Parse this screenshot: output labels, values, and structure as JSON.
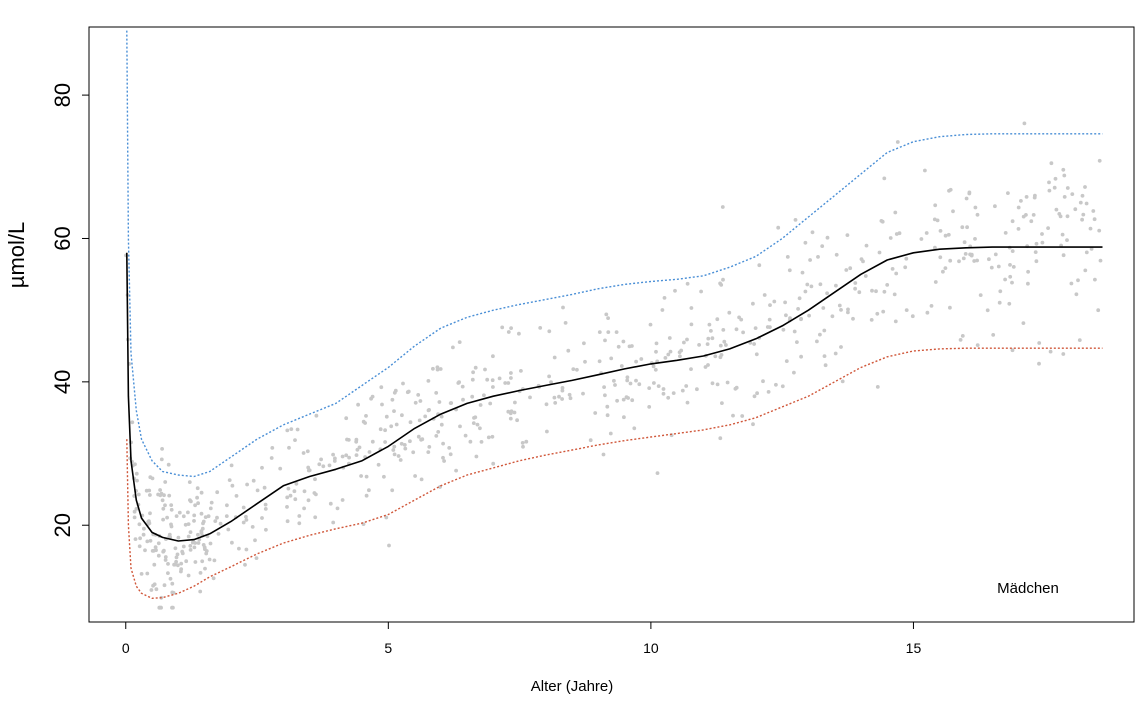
{
  "chart_data": {
    "type": "scatter",
    "xlabel": "Alter (Jahre)",
    "ylabel": "µmol/L",
    "annotation": "Mädchen",
    "xlim": [
      -0.7,
      19.2
    ],
    "ylim": [
      6.5,
      89.5
    ],
    "xticks": [
      0,
      5,
      10,
      15
    ],
    "yticks": [
      20,
      40,
      60,
      80
    ],
    "grid": false,
    "colors": {
      "points": "#c8c8c8",
      "median": "#000000",
      "upper": "#4a8fd6",
      "lower": "#d0573a",
      "frame": "#000000"
    },
    "series": [
      {
        "style": "solid",
        "x": [
          0.02,
          0.05,
          0.1,
          0.2,
          0.3,
          0.5,
          0.7,
          1.0,
          1.3,
          1.6,
          2.0,
          2.5,
          3.0,
          3.5,
          4.0,
          4.5,
          5.0,
          5.5,
          6.0,
          6.5,
          7.0,
          7.5,
          8.0,
          8.5,
          9.0,
          9.5,
          10.0,
          10.5,
          11.0,
          11.5,
          12.0,
          12.5,
          13.0,
          13.5,
          14.0,
          14.5,
          15.0,
          15.5,
          16.0,
          16.5,
          17.0,
          17.5,
          18.0,
          18.6
        ],
        "y": [
          58,
          38,
          29,
          23.5,
          21,
          19,
          18.3,
          17.8,
          18,
          18.8,
          20.5,
          23,
          25.5,
          26.8,
          27.8,
          29,
          31,
          33.5,
          35.5,
          37,
          38,
          38.8,
          39.5,
          40.2,
          41,
          41.8,
          42.5,
          43,
          43.6,
          44.6,
          46,
          47.8,
          50,
          52.5,
          55,
          57,
          58,
          58.5,
          58.7,
          58.8,
          58.8,
          58.8,
          58.8,
          58.8
        ]
      },
      {
        "style": "dotted",
        "x": [
          0.02,
          0.05,
          0.1,
          0.2,
          0.3,
          0.5,
          0.7,
          1.0,
          1.3,
          1.6,
          2.0,
          2.5,
          3.0,
          3.5,
          4.0,
          4.5,
          5.0,
          5.5,
          6.0,
          6.5,
          7.0,
          7.5,
          8.0,
          8.5,
          9.0,
          9.5,
          10.0,
          10.5,
          11.0,
          11.5,
          12.0,
          12.5,
          13.0,
          13.5,
          14.0,
          14.5,
          15.0,
          15.5,
          16.0,
          16.5,
          17.0,
          17.5,
          18.0,
          18.6
        ],
        "y": [
          89,
          60,
          44,
          36,
          32,
          29,
          27.5,
          27,
          26.8,
          27.5,
          29.5,
          32,
          34,
          35.5,
          37,
          39.5,
          42,
          45,
          47.5,
          49,
          50,
          50.8,
          51.5,
          52.2,
          53,
          53.6,
          54,
          54.3,
          54.8,
          56,
          57.5,
          60,
          63,
          66,
          69,
          72,
          73.5,
          74.2,
          74.5,
          74.6,
          74.6,
          74.6,
          74.6,
          74.6
        ]
      },
      {
        "style": "dotted",
        "x": [
          0.02,
          0.05,
          0.1,
          0.2,
          0.3,
          0.5,
          0.7,
          1.0,
          1.3,
          1.6,
          2.0,
          2.5,
          3.0,
          3.5,
          4.0,
          4.5,
          5.0,
          5.5,
          6.0,
          6.5,
          7.0,
          7.5,
          8.0,
          8.5,
          9.0,
          9.5,
          10.0,
          10.5,
          11.0,
          11.5,
          12.0,
          12.5,
          13.0,
          13.5,
          14.0,
          14.5,
          15.0,
          15.5,
          16.0,
          16.5,
          17.0,
          17.5,
          18.0,
          18.6
        ],
        "y": [
          32,
          20,
          14,
          11.5,
          10.5,
          9.8,
          9.9,
          10.5,
          11.5,
          12.8,
          14.2,
          16,
          17.5,
          18.6,
          19.5,
          20.3,
          21.5,
          23.5,
          25.5,
          27,
          28,
          29,
          29.8,
          30.5,
          31.2,
          31.8,
          32.3,
          32.8,
          33.3,
          34,
          35,
          36.5,
          38,
          40,
          42,
          43.5,
          44.3,
          44.6,
          44.7,
          44.7,
          44.7,
          44.7,
          44.7,
          44.7
        ]
      }
    ]
  }
}
